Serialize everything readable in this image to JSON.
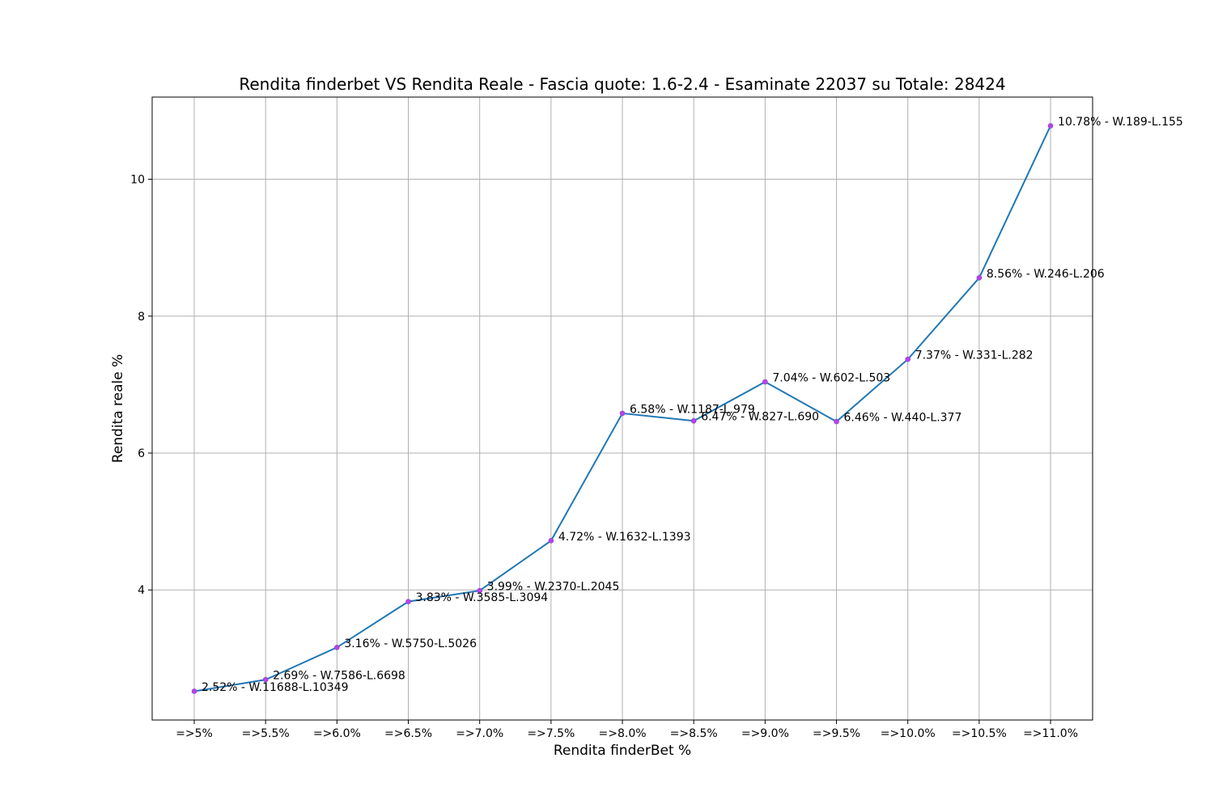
{
  "chart_data": {
    "type": "line",
    "title": "Rendita finderbet VS Rendita Reale - Fascia quote: 1.6-2.4 - Esaminate 22037 su Totale: 28424",
    "xlabel": "Rendita finderBet %",
    "ylabel": "Rendita reale %",
    "categories": [
      "=>5%",
      "=>5.5%",
      "=>6.0%",
      "=>6.5%",
      "=>7.0%",
      "=>7.5%",
      "=>8.0%",
      "=>8.5%",
      "=>9.0%",
      "=>9.5%",
      "=>10.0%",
      "=>10.5%",
      "=>11.0%"
    ],
    "series": [
      {
        "values": [
          2.52,
          2.69,
          3.16,
          3.83,
          3.99,
          4.72,
          6.58,
          6.47,
          7.04,
          6.46,
          7.37,
          8.56,
          10.78
        ],
        "point_labels": [
          "2.52% - W.11688-L.10349",
          "2.69% - W.7586-L.6698",
          "3.16% - W.5750-L.5026",
          "3.83% - W.3585-L.3094",
          "3.99% - W.2370-L.2045",
          "4.72% - W.1632-L.1393",
          "6.58% - W.1187-L.979",
          "6.47% - W.827-L.690",
          "7.04% - W.602-L.503",
          "6.46% - W.440-L.377",
          "7.37% - W.331-L.282",
          "8.56% - W.246-L.206",
          "10.78% - W.189-L.155"
        ]
      }
    ],
    "yticks": [
      4,
      6,
      8,
      10
    ],
    "ylim": [
      2.1,
      11.2
    ],
    "grid": true,
    "colors": {
      "line": "#1f77b4",
      "marker": "#bf3fe8",
      "grid": "#b0b0b0"
    }
  }
}
